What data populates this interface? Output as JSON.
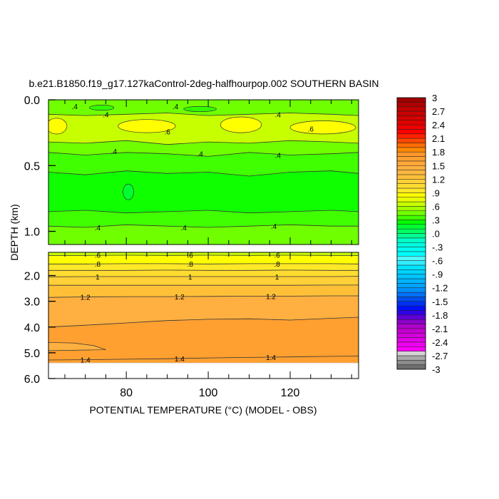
{
  "chart_data": {
    "type": "heatmap",
    "subtype": "filled-contour",
    "title": "b.e21.B1850.f19_g17.127kaControl-2deg-halfhourpop.002 SOUTHERN BASIN",
    "xlabel": "POTENTIAL TEMPERATURE (°C) (MODEL - OBS)",
    "ylabel": "DEPTH (km)",
    "xlim": [
      61,
      136.7
    ],
    "x_ticks": [
      80,
      100,
      120
    ],
    "x_tick_labels": [
      "80",
      "100",
      "120"
    ],
    "x_minor_step": 5,
    "panels": [
      {
        "name": "upper",
        "ylim": [
          0.0,
          1.1
        ],
        "y_ticks": [
          0.0,
          0.5,
          1.0
        ],
        "y_tick_labels": [
          "0.0",
          "0.5",
          "1.0"
        ],
        "base_color": "#70ff00",
        "x_samples": [
          61,
          70,
          80,
          90,
          100,
          110,
          120,
          130,
          136.7
        ],
        "contours": [
          {
            "depth": [
              0.11,
              0.12,
              0.11,
              0.1,
              0.12,
              0.11,
              0.1,
              0.11,
              0.12
            ],
            "fill_below": "#c8ff00"
          },
          {
            "depth": [
              0.32,
              0.33,
              0.31,
              0.34,
              0.32,
              0.33,
              0.31,
              0.32,
              0.33
            ],
            "fill_below": "#70ff00"
          },
          {
            "depth": [
              0.4,
              0.42,
              0.4,
              0.41,
              0.43,
              0.4,
              0.42,
              0.41,
              0.4
            ],
            "fill_below": "#40ff00"
          },
          {
            "depth": [
              0.55,
              0.57,
              0.54,
              0.56,
              0.55,
              0.58,
              0.55,
              0.54,
              0.56
            ],
            "fill_below": "#10ff00"
          },
          {
            "depth": [
              0.85,
              0.84,
              0.86,
              0.85,
              0.84,
              0.86,
              0.85,
              0.84,
              0.85
            ],
            "fill_below": "#40ff00"
          },
          {
            "depth": [
              0.96,
              0.97,
              0.95,
              0.96,
              0.97,
              0.96,
              0.95,
              0.96,
              0.96
            ],
            "fill_below": "#70ff00"
          }
        ],
        "patches": [
          {
            "x": 63,
            "depth": 0.2,
            "rx": 2.5,
            "ry": 0.06,
            "color": "#ffff00"
          },
          {
            "x": 85,
            "depth": 0.2,
            "rx": 7,
            "ry": 0.05,
            "color": "#ffff00"
          },
          {
            "x": 108,
            "depth": 0.19,
            "rx": 5,
            "ry": 0.06,
            "color": "#ffff00"
          },
          {
            "x": 128,
            "depth": 0.21,
            "rx": 8,
            "ry": 0.05,
            "color": "#ffff00"
          },
          {
            "x": 80.5,
            "depth": 0.7,
            "rx": 1.3,
            "ry": 0.06,
            "color": "#00ff30"
          },
          {
            "x": 74,
            "depth": 0.06,
            "rx": 3,
            "ry": 0.02,
            "color": "#30ff00"
          },
          {
            "x": 98,
            "depth": 0.07,
            "rx": 4,
            "ry": 0.02,
            "color": "#30ff00"
          }
        ],
        "labels": [
          {
            "text": ".4",
            "x": 67.4,
            "depth": 0.05
          },
          {
            "text": ".4",
            "x": 92,
            "depth": 0.05
          },
          {
            "text": ".4",
            "x": 75,
            "depth": 0.11
          },
          {
            "text": ".4",
            "x": 117,
            "depth": 0.11
          },
          {
            "text": ".6",
            "x": 90,
            "depth": 0.24
          },
          {
            "text": ".6",
            "x": 125,
            "depth": 0.22
          },
          {
            "text": ".4",
            "x": 77,
            "depth": 0.39
          },
          {
            "text": ".4",
            "x": 98,
            "depth": 0.41
          },
          {
            "text": ".4",
            "x": 117,
            "depth": 0.42
          },
          {
            "text": ".4",
            "x": 73,
            "depth": 0.97
          },
          {
            "text": ".4",
            "x": 94,
            "depth": 0.97
          },
          {
            "text": ".4",
            "x": 116,
            "depth": 0.96
          }
        ]
      },
      {
        "name": "lower",
        "ylim": [
          1.1,
          6.0
        ],
        "y_ticks": [
          2.0,
          3.0,
          4.0,
          5.0,
          6.0
        ],
        "y_tick_labels": [
          "2.0",
          "3.0",
          "4.0",
          "5.0",
          "6.0"
        ],
        "data_bottom": 5.4,
        "base_color": "#c8ff00",
        "x_samples": [
          61,
          70,
          80,
          90,
          100,
          110,
          120,
          130,
          136.7
        ],
        "contours": [
          {
            "depth": [
              1.22,
              1.22,
              1.21,
              1.22,
              1.21,
              1.22,
              1.21,
              1.22,
              1.22
            ],
            "fill_below": "#ffff00"
          },
          {
            "depth": [
              1.55,
              1.55,
              1.54,
              1.54,
              1.55,
              1.54,
              1.54,
              1.54,
              1.55
            ],
            "fill_below": "#ffe828"
          },
          {
            "depth": [
              1.8,
              1.8,
              1.8,
              1.79,
              1.8,
              1.8,
              1.79,
              1.8,
              1.8
            ],
            "fill_below": "#ffdc30"
          },
          {
            "depth": [
              2.05,
              2.04,
              2.04,
              2.04,
              2.04,
              2.04,
              2.04,
              2.04,
              2.03
            ],
            "fill_below": "#ffd038"
          },
          {
            "depth": [
              2.38,
              2.38,
              2.38,
              2.38,
              2.38,
              2.38,
              2.38,
              2.37,
              2.37
            ],
            "fill_below": "#ffc038"
          },
          {
            "depth": [
              2.85,
              2.83,
              2.82,
              2.82,
              2.81,
              2.8,
              2.8,
              2.79,
              2.79
            ],
            "fill_below": "#ffb040"
          },
          {
            "depth": [
              4.0,
              3.93,
              3.84,
              3.75,
              3.7,
              3.68,
              3.73,
              3.66,
              3.62
            ],
            "fill_below": "#ffa030"
          },
          {
            "depth": [
              5.28,
              5.27,
              5.25,
              5.23,
              5.2,
              5.18,
              5.16,
              5.14,
              5.13
            ],
            "fill_below": "#ffa030"
          }
        ],
        "patches": [],
        "tongue": {
          "color": "#ffb040"
        },
        "labels": [
          {
            "text": ".6",
            "x": 73,
            "depth": 1.2
          },
          {
            "text": ".6",
            "x": 95.6,
            "depth": 1.2
          },
          {
            "text": ".6",
            "x": 116.8,
            "depth": 1.2
          },
          {
            "text": ".8",
            "x": 73,
            "depth": 1.54
          },
          {
            "text": ".8",
            "x": 95.6,
            "depth": 1.54
          },
          {
            "text": ".8",
            "x": 116.8,
            "depth": 1.54
          },
          {
            "text": "1",
            "x": 73,
            "depth": 2.04
          },
          {
            "text": "1",
            "x": 95.6,
            "depth": 2.04
          },
          {
            "text": "1",
            "x": 116.8,
            "depth": 2.04
          },
          {
            "text": "1.2",
            "x": 70,
            "depth": 2.83
          },
          {
            "text": "1.2",
            "x": 93,
            "depth": 2.82
          },
          {
            "text": "1.2",
            "x": 115.3,
            "depth": 2.8
          },
          {
            "text": "1.4",
            "x": 70,
            "depth": 5.27
          },
          {
            "text": "1.4",
            "x": 93,
            "depth": 5.22
          },
          {
            "text": "1.4",
            "x": 115.3,
            "depth": 5.17
          }
        ]
      }
    ],
    "colorbar": {
      "min": -3,
      "max": 3,
      "step": 0.1,
      "labels": [
        "3",
        "2.7",
        "2.4",
        "2.1",
        "1.8",
        "1.5",
        "1.2",
        ".9",
        ".6",
        ".3",
        ".0",
        "-.3",
        "-.6",
        "-.9",
        "-1.2",
        "-1.5",
        "-1.8",
        "-2.1",
        "-2.4",
        "-2.7",
        "-3"
      ],
      "colors": [
        "#6e6e6e",
        "#8c8c8c",
        "#a8a8a8",
        "#d4d4d4",
        "#ff00ff",
        "#f000f0",
        "#e400e8",
        "#d400dc",
        "#c400d0",
        "#b000cc",
        "#8c00cc",
        "#6000d8",
        "#3000e8",
        "#0010ff",
        "#0030f0",
        "#0050f0",
        "#0070f8",
        "#0090ff",
        "#00a4ff",
        "#00b4ff",
        "#00c4ff",
        "#00d4ff",
        "#00e4ff",
        "#30eeff",
        "#50f8ff",
        "#00ffff",
        "#00fff0",
        "#00ffe0",
        "#00ffc8",
        "#00ff90",
        "#00ff60",
        "#00ff30",
        "#00ff00",
        "#40ff00",
        "#70ff00",
        "#a0ff00",
        "#c8ff00",
        "#e8ff00",
        "#ffff00",
        "#ffe828",
        "#ffdc30",
        "#ffd038",
        "#ffc038",
        "#ffb840",
        "#ffb040",
        "#ffa838",
        "#ffa030",
        "#ff9828",
        "#ff8800",
        "#ff6c00",
        "#ff4800",
        "#ff2000",
        "#ff0000",
        "#f00000",
        "#e00000",
        "#d40000",
        "#c80000",
        "#c00000",
        "#b00000",
        "#a00000"
      ]
    }
  }
}
